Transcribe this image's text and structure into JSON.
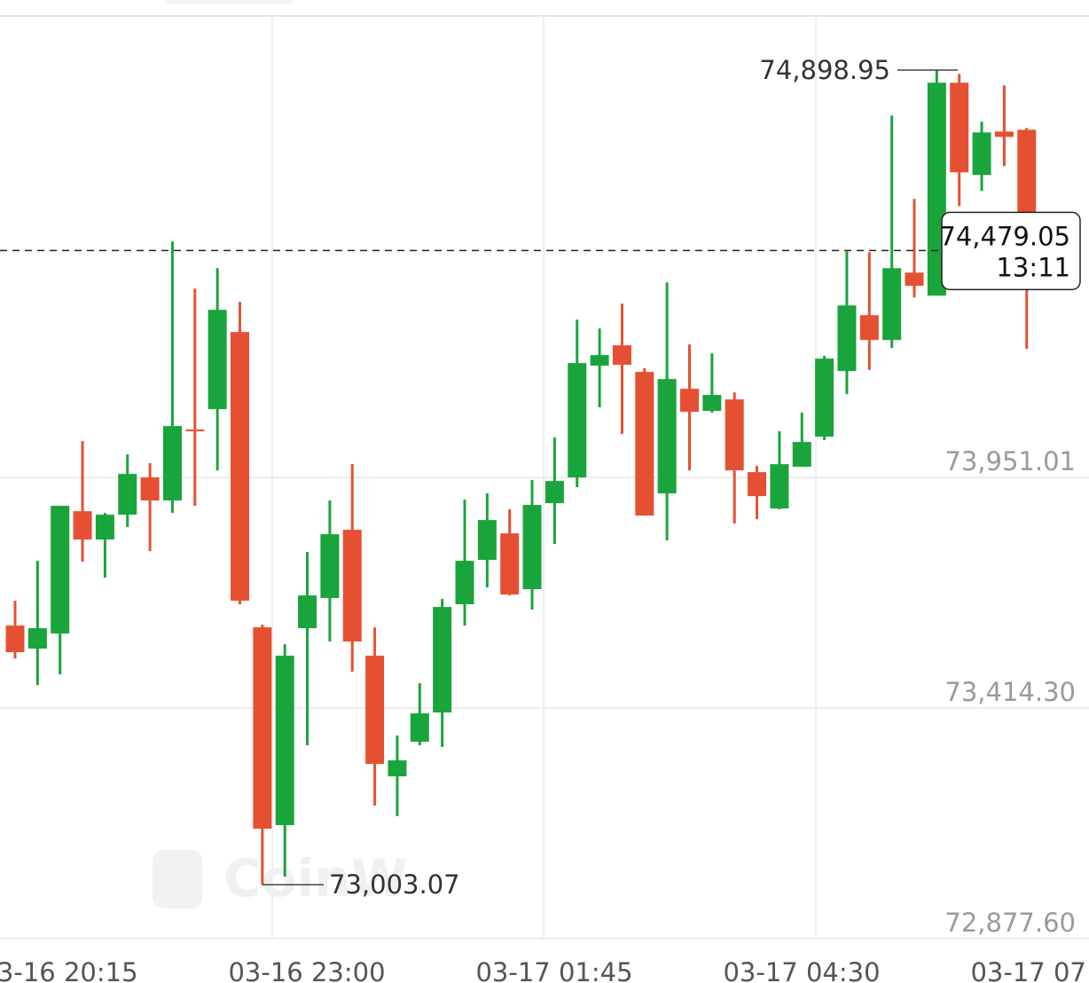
{
  "chart_data": {
    "type": "candlestick",
    "up_color": "#1aa43c",
    "down_color": "#e65032",
    "ylim": [
      72877.6,
      75025
    ],
    "yticks": [
      {
        "value": 73951.01,
        "label": "73,951.01"
      },
      {
        "value": 73414.3,
        "label": "73,414.30"
      },
      {
        "value": 72877.6,
        "label": "72,877.60"
      }
    ],
    "x_labels": [
      "03-16 20:15",
      "03-16 23:00",
      "03-17 01:45",
      "03-17 04:30",
      "03-17 07:15"
    ],
    "open": [
      73606.3,
      73552.6,
      73587.7,
      73872.5,
      73806.5,
      73864.3,
      73951.0,
      73897.3,
      74062.5,
      74109.9,
      74289.5,
      73602.1,
      73141.8,
      73600.1,
      73670.3,
      73829.2,
      73536.1,
      73255.3,
      73335.9,
      73404.0,
      73655.8,
      73759.0,
      73820.9,
      73690.9,
      73891.1,
      73951.0,
      74211.1,
      74258.6,
      74196.6,
      73913.8,
      74157.4,
      74105.8,
      74132.6,
      73963.4,
      73878.7,
      73975.8,
      74045.9,
      74198.7,
      74328.7,
      74270.9,
      74427.8,
      74374.1,
      74869.6,
      74654.9,
      74756.0,
      74760.2
    ],
    "high": [
      73664.1,
      73756.9,
      73884.9,
      74035.6,
      73868.4,
      74004.7,
      73984.0,
      74500.1,
      74390.7,
      74438.1,
      74359.7,
      73608.3,
      73562.9,
      73777.6,
      73897.3,
      73981.9,
      73602.1,
      73350.3,
      73472.1,
      73668.2,
      73899.4,
      73913.8,
      73876.7,
      73944.8,
      74043.9,
      74318.4,
      74297.8,
      74355.6,
      74204.9,
      74405.1,
      74260.6,
      74240.0,
      74149.1,
      73977.8,
      74058.3,
      74101.7,
      74233.8,
      74477.4,
      74475.3,
      74793.2,
      74599.1,
      74898.95,
      74890.0,
      74778.7,
      74863.4,
      74764.3
    ],
    "low": [
      73529.9,
      73468.0,
      73492.7,
      73754.9,
      73717.7,
      73835.4,
      73779.7,
      73868.4,
      73884.9,
      73967.5,
      73655.8,
      73003.07,
      73022.1,
      73327.6,
      73569.1,
      73498.9,
      73187.2,
      73162.5,
      73327.6,
      73323.5,
      73606.3,
      73695.0,
      73676.4,
      73643.4,
      73796.2,
      73928.3,
      74114.1,
      74052.1,
      73862.2,
      73804.4,
      73967.5,
      74101.7,
      73843.6,
      73854.0,
      73876.7,
      73975.8,
      74037.7,
      74145.0,
      74200.8,
      74252.4,
      74370.0,
      74374.1,
      74582.6,
      74617.7,
      74675.5,
      74250.3
    ],
    "close": [
      73544.3,
      73600.1,
      73884.9,
      73806.5,
      73864.3,
      73959.2,
      73897.3,
      74070.7,
      74058.3,
      74341.1,
      73664.1,
      73133.6,
      73536.1,
      73676.4,
      73818.9,
      73569.1,
      73284.2,
      73292.5,
      73401.9,
      73649.6,
      73756.9,
      73851.9,
      73678.5,
      73887.0,
      73942.7,
      74217.3,
      74235.8,
      74213.1,
      73862.2,
      74180.1,
      74103.7,
      74143.0,
      73967.5,
      73907.6,
      73981.9,
      74033.6,
      74227.6,
      74351.4,
      74270.9,
      74438.1,
      74396.9,
      74869.6,
      74661.1,
      74754.0,
      74743.6,
      74479.05
    ],
    "max_label": {
      "value": 74898.95,
      "label": "74,898.95"
    },
    "min_label": {
      "value": 73003.07,
      "label": "73,003.07"
    },
    "last_price": {
      "value": 74479.05,
      "label": "74,479.05"
    },
    "countdown": "13:11",
    "watermark": "CoinW"
  }
}
